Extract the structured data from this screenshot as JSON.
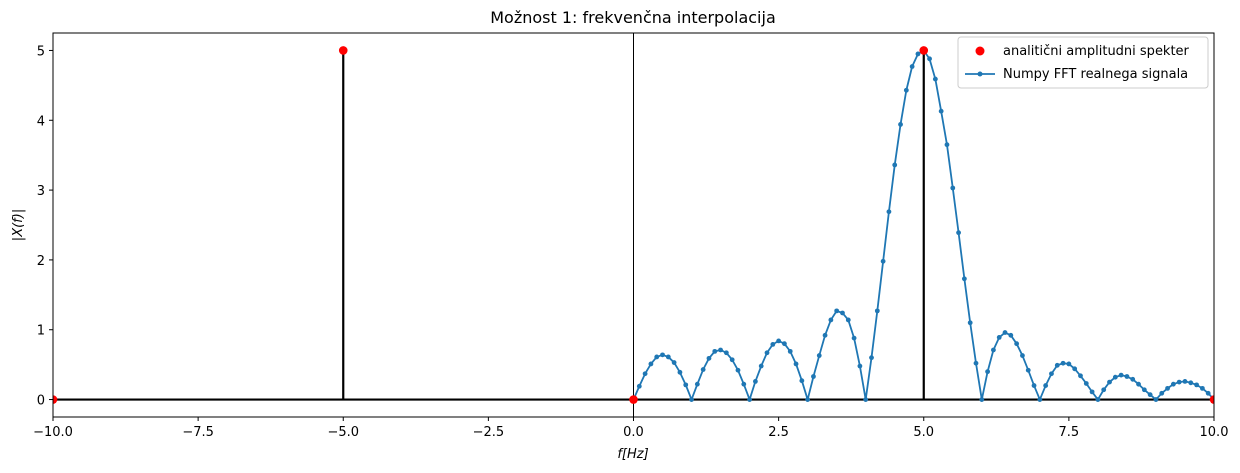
{
  "chart_data": {
    "type": "line",
    "title": "Možnost 1: frekvenčna interpolacija",
    "xlabel": "f[Hz]",
    "ylabel": "|X(f)|",
    "xlim": [
      -10,
      10
    ],
    "ylim": [
      -0.25,
      5.25
    ],
    "xticks": [
      -10,
      -7.5,
      -5,
      -2.5,
      0,
      2.5,
      5,
      7.5,
      10
    ],
    "xtick_labels": [
      "−10.0",
      "−7.5",
      "−5.0",
      "−2.5",
      "0.0",
      "2.5",
      "5.0",
      "7.5",
      "10.0"
    ],
    "yticks": [
      0,
      1,
      2,
      3,
      4,
      5
    ],
    "ytick_labels": [
      "0",
      "1",
      "2",
      "3",
      "4",
      "5"
    ],
    "grid": false,
    "legend_position": "top-right",
    "vertical_reference_line_x": 0,
    "series": [
      {
        "name": "analitični amplitudni spekter",
        "kind": "stem",
        "color": "#ff0000",
        "stem_color": "#000000",
        "x": [
          -10,
          -5,
          0,
          5,
          10
        ],
        "y": [
          0,
          5,
          0,
          5,
          0
        ]
      },
      {
        "name": "Numpy FFT realnega signala",
        "kind": "line-marker",
        "color": "#1f77b4",
        "x": [
          0.0,
          0.1,
          0.2,
          0.3,
          0.4,
          0.5,
          0.6,
          0.7,
          0.8,
          0.9,
          1.0,
          1.1,
          1.2,
          1.3,
          1.4,
          1.5,
          1.6,
          1.7,
          1.8,
          1.9,
          2.0,
          2.1,
          2.2,
          2.3,
          2.4,
          2.5,
          2.6,
          2.7,
          2.8,
          2.9,
          3.0,
          3.1,
          3.2,
          3.3,
          3.4,
          3.5,
          3.6,
          3.7,
          3.8,
          3.9,
          4.0,
          4.1,
          4.2,
          4.3,
          4.4,
          4.5,
          4.6,
          4.7,
          4.8,
          4.9,
          5.0,
          5.1,
          5.2,
          5.3,
          5.4,
          5.5,
          5.6,
          5.7,
          5.8,
          5.9,
          6.0,
          6.1,
          6.2,
          6.3,
          6.4,
          6.5,
          6.6,
          6.7,
          6.8,
          6.9,
          7.0,
          7.1,
          7.2,
          7.3,
          7.4,
          7.5,
          7.6,
          7.7,
          7.8,
          7.9,
          8.0,
          8.1,
          8.2,
          8.3,
          8.4,
          8.5,
          8.6,
          8.7,
          8.8,
          8.9,
          9.0,
          9.1,
          9.2,
          9.3,
          9.4,
          9.5,
          9.6,
          9.7,
          9.8,
          9.9,
          10.0
        ],
        "y": [
          0.0,
          0.19,
          0.37,
          0.51,
          0.61,
          0.64,
          0.61,
          0.53,
          0.39,
          0.21,
          0.0,
          0.22,
          0.43,
          0.59,
          0.69,
          0.71,
          0.67,
          0.57,
          0.42,
          0.22,
          0.0,
          0.26,
          0.48,
          0.67,
          0.79,
          0.84,
          0.8,
          0.69,
          0.51,
          0.27,
          0.0,
          0.33,
          0.63,
          0.92,
          1.14,
          1.27,
          1.24,
          1.14,
          0.88,
          0.48,
          0.0,
          0.6,
          1.27,
          1.98,
          2.69,
          3.36,
          3.94,
          4.43,
          4.77,
          4.95,
          5.0,
          4.88,
          4.59,
          4.13,
          3.65,
          3.03,
          2.39,
          1.73,
          1.1,
          0.52,
          0.0,
          0.4,
          0.71,
          0.89,
          0.96,
          0.92,
          0.8,
          0.63,
          0.42,
          0.2,
          0.0,
          0.2,
          0.37,
          0.49,
          0.52,
          0.51,
          0.44,
          0.34,
          0.23,
          0.11,
          0.0,
          0.14,
          0.25,
          0.32,
          0.35,
          0.33,
          0.29,
          0.22,
          0.14,
          0.07,
          0.0,
          0.09,
          0.16,
          0.22,
          0.25,
          0.26,
          0.24,
          0.21,
          0.16,
          0.09,
          0.0
        ]
      }
    ]
  }
}
